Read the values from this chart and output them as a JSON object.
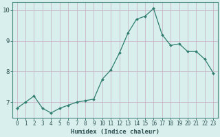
{
  "x": [
    0,
    1,
    2,
    3,
    4,
    5,
    6,
    7,
    8,
    9,
    10,
    11,
    12,
    13,
    14,
    15,
    16,
    17,
    18,
    19,
    20,
    21,
    22,
    23
  ],
  "y": [
    6.8,
    7.0,
    7.2,
    6.8,
    6.65,
    6.8,
    6.9,
    7.0,
    7.05,
    7.1,
    7.75,
    8.05,
    8.6,
    9.25,
    9.7,
    9.8,
    10.05,
    9.2,
    8.85,
    8.9,
    8.65,
    8.65,
    8.4,
    7.95
  ],
  "line_color": "#2e7d6e",
  "marker": "D",
  "marker_size": 2.0,
  "bg_color": "#d8efed",
  "grid_color": "#c8b8c8",
  "spine_color": "#4a8a80",
  "xlabel": "Humidex (Indice chaleur)",
  "ylim": [
    6.5,
    10.25
  ],
  "xlim": [
    -0.5,
    23.5
  ],
  "yticks": [
    7,
    8,
    9,
    10
  ],
  "xticks": [
    0,
    1,
    2,
    3,
    4,
    5,
    6,
    7,
    8,
    9,
    10,
    11,
    12,
    13,
    14,
    15,
    16,
    17,
    18,
    19,
    20,
    21,
    22,
    23
  ],
  "font_color": "#2e5050",
  "label_fontsize": 6.5,
  "tick_fontsize": 5.5
}
